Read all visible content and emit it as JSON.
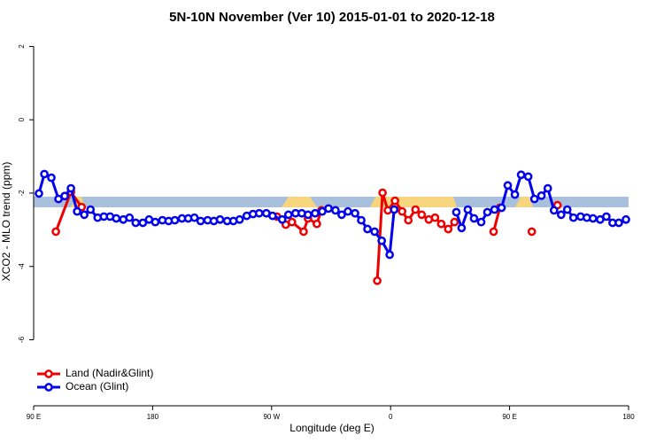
{
  "chart_data": {
    "type": "line",
    "title": "5N-10N November (Ver 10)   2015-01-01 to 2020-12-18",
    "xlabel": "Longitude (deg E)",
    "ylabel": "XCO2 - MLO trend (ppm)",
    "xlim": [
      90,
      540
    ],
    "ylim": [
      -7.8,
      2.3
    ],
    "xticks": [
      {
        "value": 90,
        "label": "90 E"
      },
      180,
      {
        "value": 270,
        "label": "90 W"
      },
      {
        "value": 360,
        "label": "0"
      },
      {
        "value": 450,
        "label": "90 E"
      },
      {
        "value": 540,
        "label": "180"
      }
    ],
    "yticks": [
      2,
      0,
      -2,
      -4,
      -6
    ],
    "legend": "bottom-left",
    "series": [
      {
        "name": "Land (Nadir&Glint)",
        "color": "#ee0000",
        "x": [
          106.8,
          118.2,
          126.3,
          null,
          274.0,
          280.7,
          285.4,
          294.2,
          297.5,
          304.2,
          307.6,
          null,
          349.9,
          353.9,
          357.9,
          363.3,
          368.7,
          373.4,
          378.8,
          383.5,
          388.9,
          393.6,
          398.3,
          403.6,
          408.3,
          null,
          437.9,
          442.6,
          null,
          466.8,
          null,
          486.2
        ],
        "values": [
          -3.05,
          -1.97,
          -2.38,
          null,
          -2.64,
          -2.86,
          -2.79,
          -3.05,
          -2.69,
          -2.84,
          -2.47,
          null,
          -4.39,
          -1.99,
          -2.47,
          -2.21,
          -2.5,
          -2.74,
          -2.45,
          -2.59,
          -2.72,
          -2.67,
          -2.84,
          -2.98,
          -2.79,
          null,
          -3.05,
          -2.4,
          null,
          -3.05,
          null,
          -2.33
        ]
      },
      {
        "name": "Ocean (Glint)",
        "color": "#0000ee",
        "x": [
          94.0,
          98.1,
          103.4,
          108.8,
          113.5,
          118.2,
          122.9,
          128.3,
          133.0,
          138.4,
          143.1,
          147.8,
          152.5,
          157.8,
          162.5,
          167.2,
          172.6,
          177.3,
          182.0,
          187.4,
          192.1,
          196.8,
          202.2,
          206.9,
          211.6,
          216.3,
          221.6,
          226.3,
          231.0,
          236.4,
          241.1,
          245.8,
          251.2,
          255.9,
          260.6,
          266.0,
          270.7,
          278.0,
          282.7,
          288.1,
          292.8,
          297.5,
          302.9,
          308.3,
          313.0,
          318.3,
          323.0,
          327.7,
          333.1,
          337.8,
          342.5,
          347.9,
          353.3,
          359.3,
          362.7,
          null,
          409.7,
          413.7,
          418.4,
          423.1,
          428.5,
          433.2,
          438.6,
          443.9,
          448.6,
          454.0,
          458.7,
          464.1,
          468.8,
          474.1,
          478.9,
          483.6,
          489.0,
          493.6,
          498.3,
          503.7,
          508.4,
          513.1,
          518.5,
          523.2,
          527.9,
          532.6,
          538.0
        ],
        "values": [
          -2.01,
          -1.48,
          -1.58,
          -2.16,
          -2.08,
          -1.87,
          -2.5,
          -2.59,
          -2.45,
          -2.67,
          -2.64,
          -2.64,
          -2.69,
          -2.72,
          -2.67,
          -2.81,
          -2.81,
          -2.72,
          -2.79,
          -2.74,
          -2.76,
          -2.74,
          -2.69,
          -2.69,
          -2.67,
          -2.76,
          -2.74,
          -2.76,
          -2.72,
          -2.76,
          -2.76,
          -2.72,
          -2.62,
          -2.57,
          -2.55,
          -2.55,
          -2.62,
          -2.72,
          -2.59,
          -2.55,
          -2.55,
          -2.59,
          -2.55,
          -2.5,
          -2.42,
          -2.47,
          -2.59,
          -2.5,
          -2.55,
          -2.74,
          -2.98,
          -3.05,
          -3.3,
          -3.68,
          -2.45,
          null,
          -2.52,
          -2.95,
          -2.45,
          -2.69,
          -2.79,
          -2.52,
          -2.45,
          -2.4,
          -1.79,
          -2.04,
          -1.5,
          -1.55,
          -2.16,
          -2.07,
          -1.87,
          -2.47,
          -2.59,
          -2.45,
          -2.67,
          -2.64,
          -2.67,
          -2.69,
          -2.72,
          -2.64,
          -2.81,
          -2.81,
          -2.72
        ]
      }
    ]
  }
}
